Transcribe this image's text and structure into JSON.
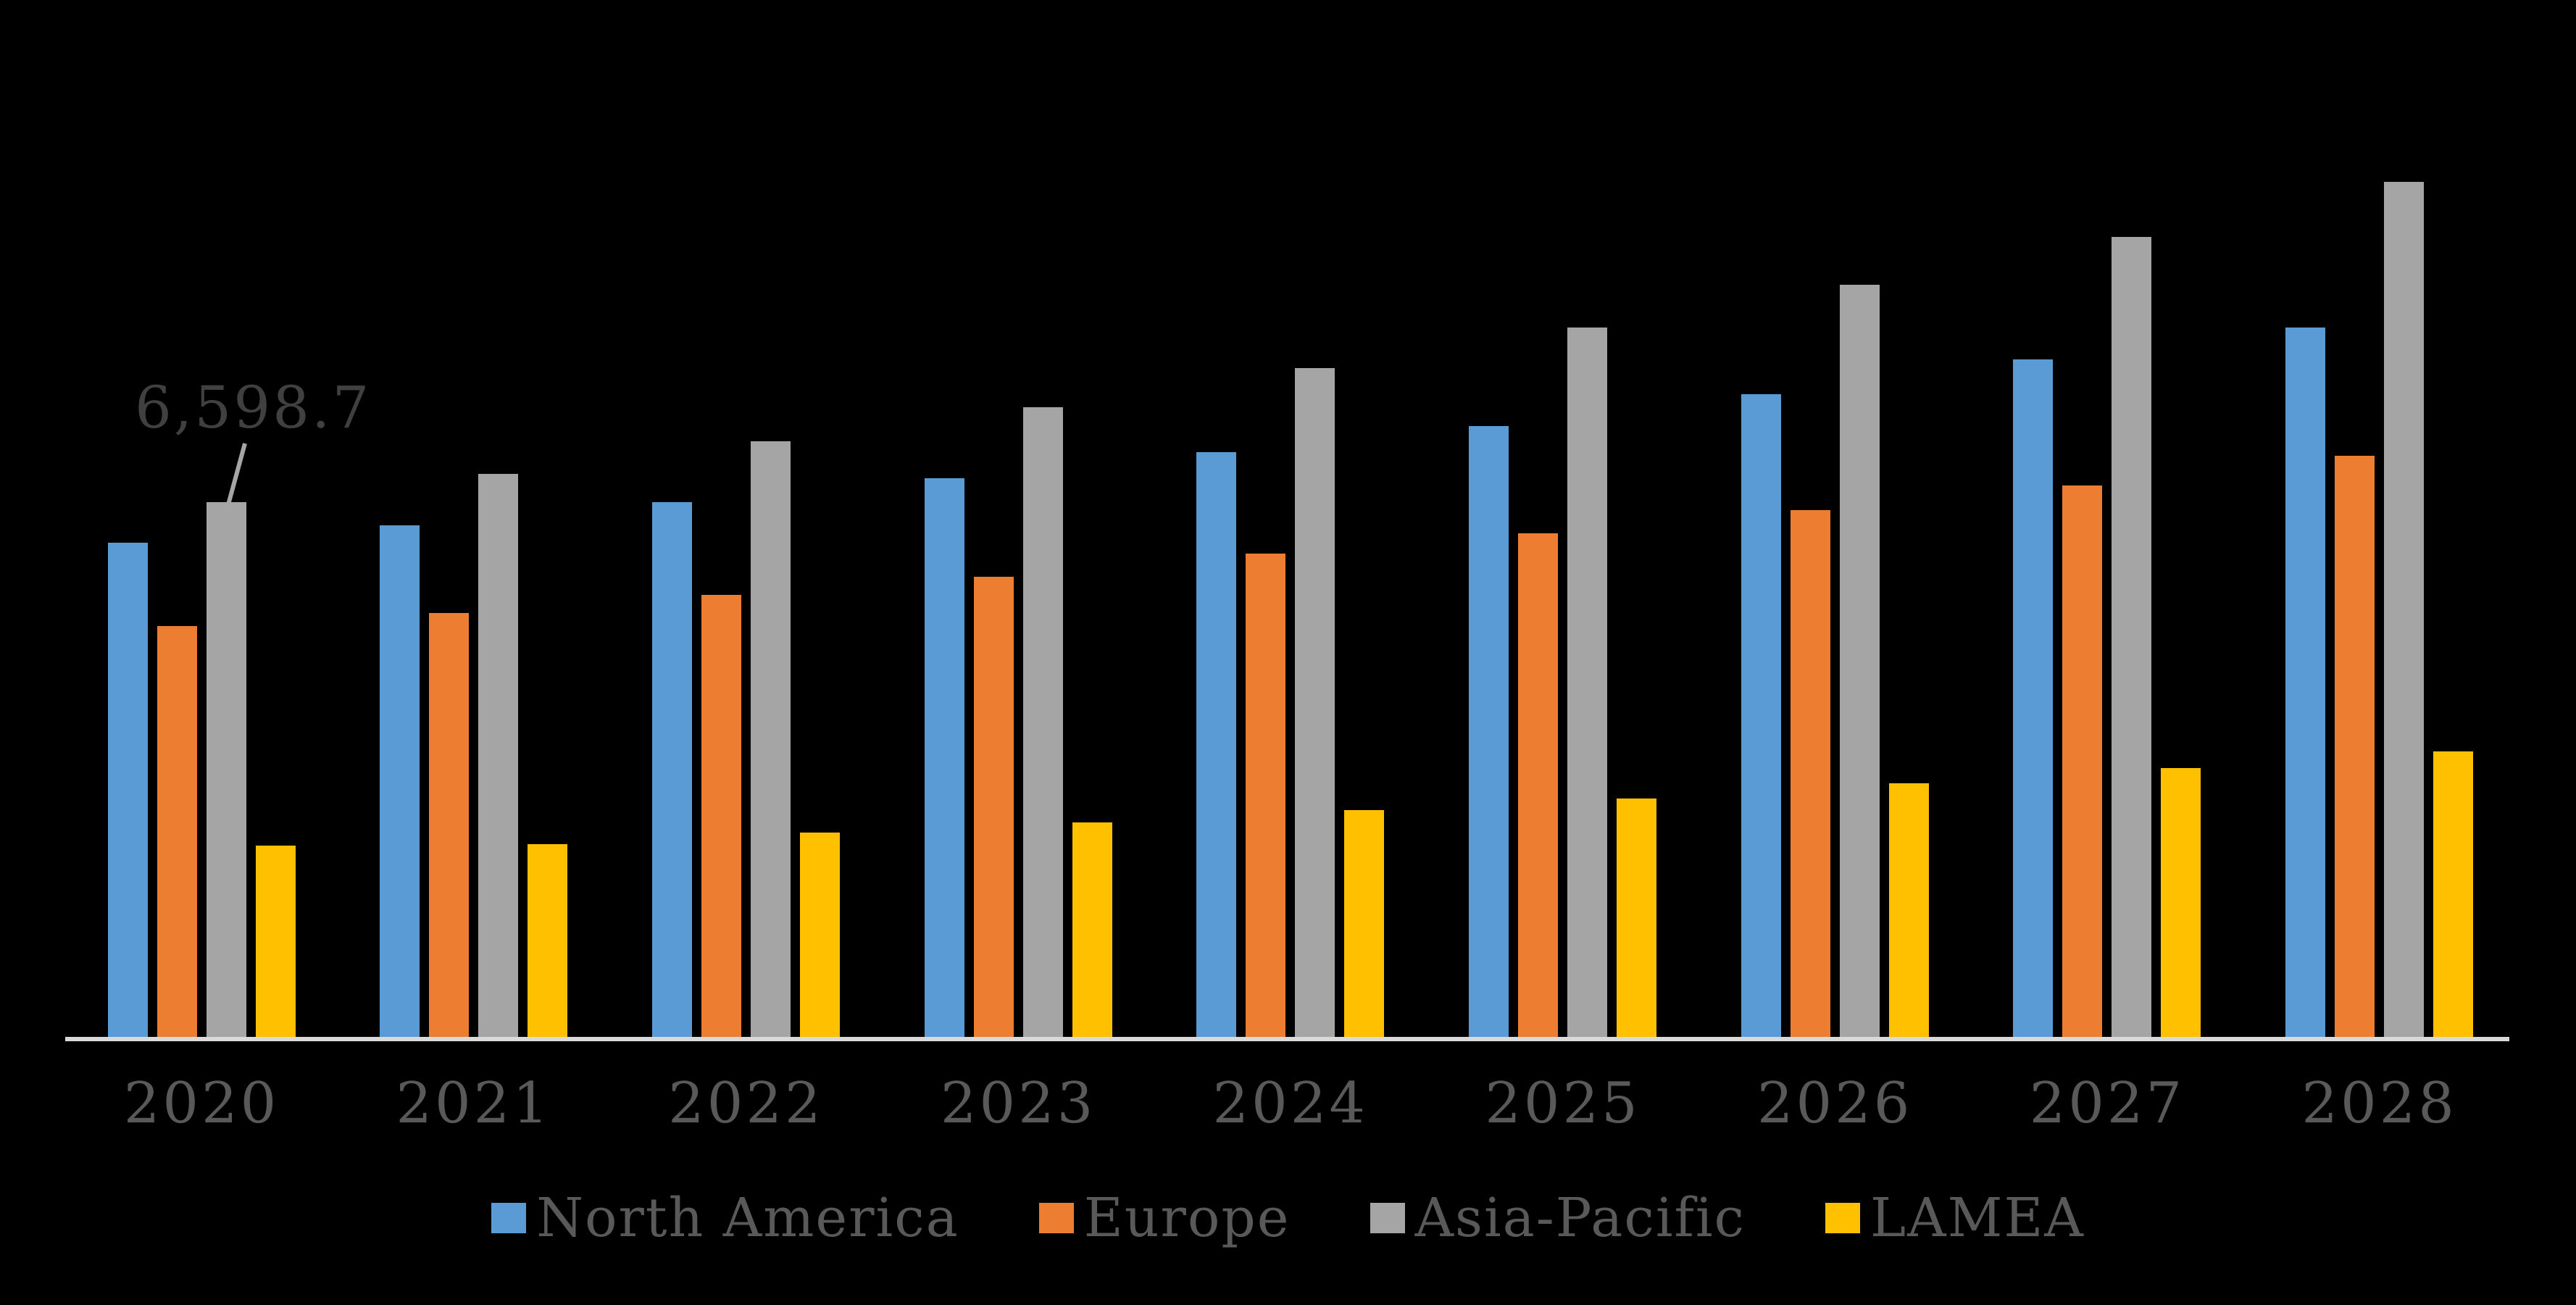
{
  "chart_data": {
    "type": "bar",
    "title": "",
    "categories": [
      "2020",
      "2021",
      "2022",
      "2023",
      "2024",
      "2025",
      "2026",
      "2027",
      "2028"
    ],
    "series": [
      {
        "name": "North America",
        "color": "#5B9BD5",
        "values": [
          6100,
          6310,
          6600,
          6890,
          7220,
          7540,
          7930,
          8360,
          8750
        ]
      },
      {
        "name": "Europe",
        "color": "#ED7D31",
        "values": [
          5070,
          5230,
          5450,
          5680,
          5960,
          6210,
          6500,
          6800,
          7170
        ]
      },
      {
        "name": "Asia-Pacific",
        "color": "#A5A5A5",
        "values": [
          6598.7,
          6950,
          7350,
          7770,
          8250,
          8750,
          9280,
          9870,
          10550
        ]
      },
      {
        "name": "LAMEA",
        "color": "#FFC000",
        "values": [
          2360,
          2380,
          2520,
          2650,
          2800,
          2940,
          3130,
          3320,
          3520
        ]
      }
    ],
    "annotation": {
      "text": "6,598.7",
      "series": "Asia-Pacific",
      "category": "2020"
    },
    "legend_position": "bottom",
    "value_axis": "hidden",
    "grid": "off",
    "background_color": "#000000",
    "axis_line_color": "#D9D9D9",
    "label_color": "#595959",
    "annotation_color": "#404040",
    "leader_line_color": "#A6A6A6"
  }
}
